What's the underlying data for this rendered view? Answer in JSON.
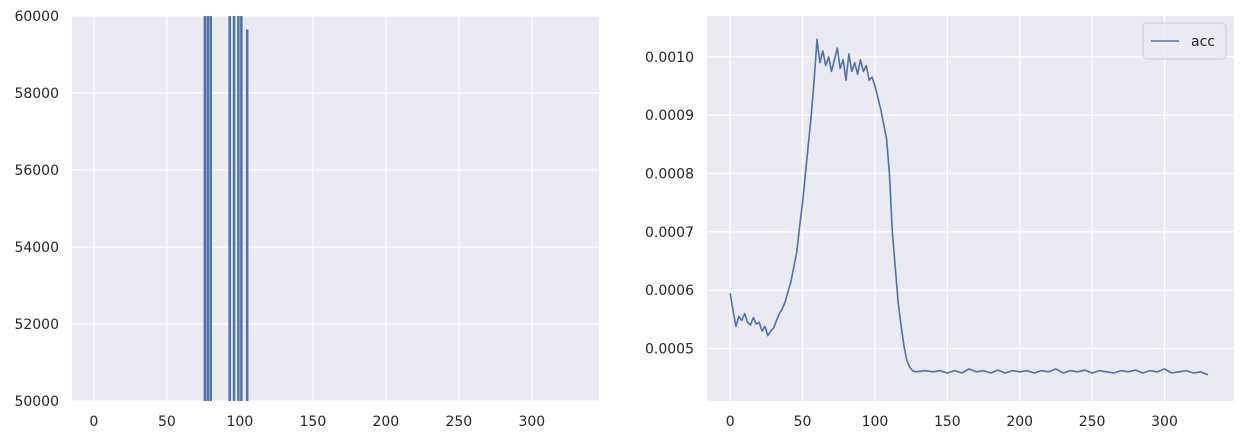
{
  "chart_data": [
    {
      "type": "bar",
      "title": "",
      "xlabel": "",
      "ylabel": "",
      "xlim": [
        -15,
        346
      ],
      "ylim": [
        50000,
        60000
      ],
      "x_ticks": [
        0,
        50,
        100,
        150,
        200,
        250,
        300
      ],
      "y_ticks": [
        50000,
        52000,
        54000,
        56000,
        58000,
        60000
      ],
      "grid": true,
      "bar_color": "#4c72b0",
      "background_color": "#eaeaf2",
      "bars": [
        {
          "x": 76,
          "value": 60000
        },
        {
          "x": 78,
          "value": 60000
        },
        {
          "x": 80,
          "value": 60000
        },
        {
          "x": 93,
          "value": 60000
        },
        {
          "x": 96,
          "value": 60000
        },
        {
          "x": 99,
          "value": 60000
        },
        {
          "x": 101,
          "value": 60000
        },
        {
          "x": 105,
          "value": 59650
        }
      ]
    },
    {
      "type": "line",
      "title": "",
      "xlabel": "",
      "ylabel": "",
      "xlim": [
        -16,
        348
      ],
      "ylim": [
        0.00041,
        0.00107
      ],
      "x_ticks": [
        0,
        50,
        100,
        150,
        200,
        250,
        300
      ],
      "y_ticks": [
        0.0005,
        0.0006,
        0.0007,
        0.0008,
        0.0009,
        0.001
      ],
      "y_tick_labels": [
        "0.0005",
        "0.0006",
        "0.0007",
        "0.0008",
        "0.0009",
        "0.0010"
      ],
      "grid": true,
      "legend_position": "upper right",
      "background_color": "#eaeaf2",
      "series": [
        {
          "name": "acc",
          "color": "#4c72b0",
          "points": [
            [
              0,
              0.000595
            ],
            [
              2,
              0.000565
            ],
            [
              4,
              0.000538
            ],
            [
              6,
              0.000555
            ],
            [
              8,
              0.000548
            ],
            [
              10,
              0.00056
            ],
            [
              12,
              0.000545
            ],
            [
              14,
              0.00054
            ],
            [
              16,
              0.000553
            ],
            [
              18,
              0.000542
            ],
            [
              20,
              0.000545
            ],
            [
              22,
              0.00053
            ],
            [
              24,
              0.000538
            ],
            [
              26,
              0.000522
            ],
            [
              28,
              0.00053
            ],
            [
              30,
              0.000535
            ],
            [
              32,
              0.000548
            ],
            [
              34,
              0.00056
            ],
            [
              36,
              0.000568
            ],
            [
              38,
              0.00058
            ],
            [
              40,
              0.000598
            ],
            [
              42,
              0.000615
            ],
            [
              44,
              0.00064
            ],
            [
              46,
              0.000665
            ],
            [
              48,
              0.00071
            ],
            [
              50,
              0.00075
            ],
            [
              52,
              0.0008
            ],
            [
              54,
              0.00085
            ],
            [
              56,
              0.0009
            ],
            [
              58,
              0.00096
            ],
            [
              60,
              0.00103
            ],
            [
              62,
              0.00099
            ],
            [
              64,
              0.00101
            ],
            [
              66,
              0.000985
            ],
            [
              68,
              0.001
            ],
            [
              70,
              0.000975
            ],
            [
              72,
              0.000995
            ],
            [
              74,
              0.001015
            ],
            [
              76,
              0.00098
            ],
            [
              78,
              0.000995
            ],
            [
              80,
              0.00096
            ],
            [
              82,
              0.001005
            ],
            [
              84,
              0.000975
            ],
            [
              86,
              0.00099
            ],
            [
              88,
              0.00097
            ],
            [
              90,
              0.000995
            ],
            [
              92,
              0.000975
            ],
            [
              94,
              0.000985
            ],
            [
              96,
              0.00096
            ],
            [
              98,
              0.000965
            ],
            [
              100,
              0.00095
            ],
            [
              102,
              0.00093
            ],
            [
              104,
              0.00091
            ],
            [
              106,
              0.000885
            ],
            [
              108,
              0.00086
            ],
            [
              110,
              0.0008
            ],
            [
              112,
              0.0007
            ],
            [
              114,
              0.00064
            ],
            [
              116,
              0.00058
            ],
            [
              118,
              0.00054
            ],
            [
              120,
              0.000505
            ],
            [
              122,
              0.00048
            ],
            [
              124,
              0.000468
            ],
            [
              126,
              0.000462
            ],
            [
              128,
              0.00046
            ],
            [
              135,
              0.000462
            ],
            [
              140,
              0.00046
            ],
            [
              145,
              0.000462
            ],
            [
              150,
              0.000458
            ],
            [
              155,
              0.000462
            ],
            [
              160,
              0.000458
            ],
            [
              165,
              0.000465
            ],
            [
              170,
              0.00046
            ],
            [
              175,
              0.000462
            ],
            [
              180,
              0.000458
            ],
            [
              185,
              0.000463
            ],
            [
              190,
              0.000458
            ],
            [
              195,
              0.000462
            ],
            [
              200,
              0.00046
            ],
            [
              205,
              0.000462
            ],
            [
              210,
              0.000458
            ],
            [
              215,
              0.000462
            ],
            [
              220,
              0.00046
            ],
            [
              225,
              0.000465
            ],
            [
              230,
              0.000458
            ],
            [
              235,
              0.000462
            ],
            [
              240,
              0.00046
            ],
            [
              245,
              0.000463
            ],
            [
              250,
              0.000458
            ],
            [
              255,
              0.000462
            ],
            [
              260,
              0.00046
            ],
            [
              265,
              0.000458
            ],
            [
              270,
              0.000462
            ],
            [
              275,
              0.00046
            ],
            [
              280,
              0.000463
            ],
            [
              285,
              0.000458
            ],
            [
              290,
              0.000462
            ],
            [
              295,
              0.00046
            ],
            [
              300,
              0.000465
            ],
            [
              305,
              0.000458
            ],
            [
              310,
              0.00046
            ],
            [
              315,
              0.000462
            ],
            [
              320,
              0.000458
            ],
            [
              325,
              0.00046
            ],
            [
              330,
              0.000455
            ]
          ]
        }
      ]
    }
  ]
}
